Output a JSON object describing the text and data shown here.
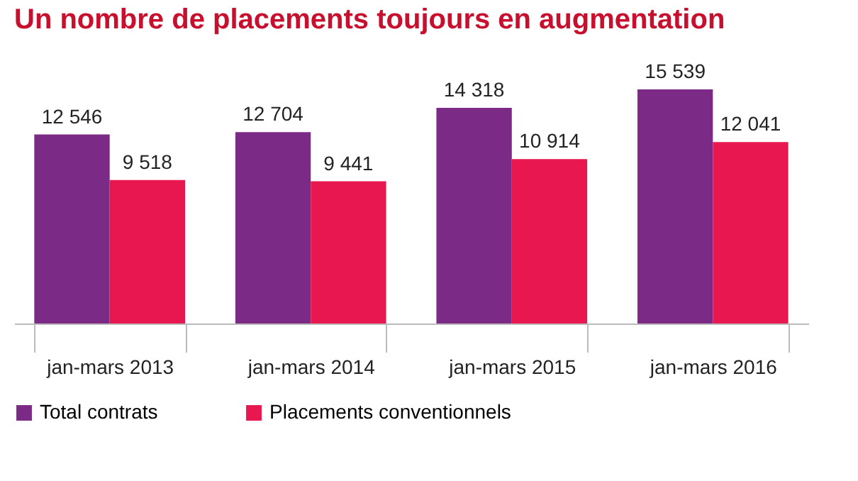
{
  "chart_data": {
    "type": "bar",
    "title": "Un nombre de placements toujours en augmentation",
    "categories": [
      "jan-mars 2013",
      "jan-mars 2014",
      "jan-mars 2015",
      "jan-mars 2016"
    ],
    "series": [
      {
        "name": "Total contrats",
        "color": "#7b2a85",
        "values": [
          12546,
          12704,
          14318,
          15539
        ],
        "value_labels": [
          "12 546",
          "12 704",
          "14 318",
          "15 539"
        ]
      },
      {
        "name": "Placements conventionnels",
        "color": "#e8174f",
        "values": [
          9518,
          9441,
          10914,
          12041
        ],
        "value_labels": [
          "9 518",
          "9 441",
          "10 914",
          "12 041"
        ]
      }
    ],
    "legend": "bottom",
    "grid": false
  }
}
